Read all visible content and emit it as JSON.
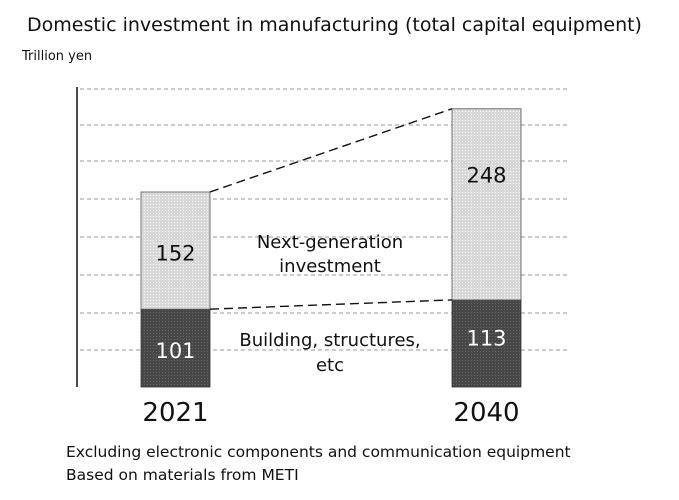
{
  "chart_data": {
    "type": "bar",
    "stacked": true,
    "title": "Domestic investment in manufacturing (total capital equipment)",
    "unit_label": "Trillion yen",
    "categories": [
      "2021",
      "2040"
    ],
    "series": [
      {
        "name": "Building, structures, etc",
        "values": [
          101,
          113
        ],
        "color": "#4a4a4a"
      },
      {
        "name": "Next-generation investment",
        "values": [
          152,
          248
        ],
        "color": "#d6d6d6"
      }
    ],
    "series_label_lines": [
      [
        "Building, structures,",
        "etc"
      ],
      [
        "Next-generation",
        "investment"
      ]
    ],
    "ylim": [
      0,
      410
    ],
    "grid": true,
    "connector_lines": "dashed"
  },
  "notes": [
    "Excluding electronic components and communication equipment",
    "Based on materials from METI"
  ]
}
